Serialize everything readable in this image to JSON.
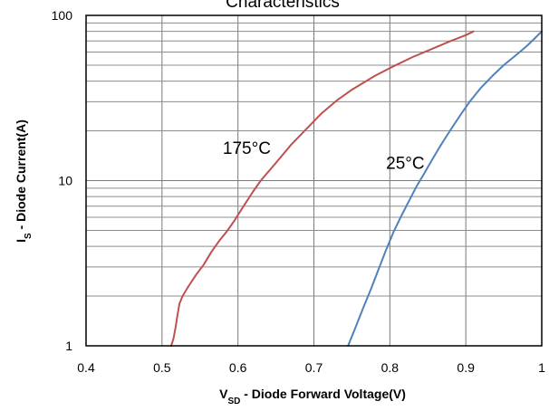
{
  "chart_data": {
    "type": "line",
    "title": "Characteristics",
    "xlabel": {
      "main": "V",
      "sub": "SD",
      "rest": " - Diode Forward Voltage(V)"
    },
    "ylabel": {
      "main": "I",
      "sub": "S",
      "rest": " - Diode Current(A)"
    },
    "xlim": [
      0.4,
      1.0
    ],
    "ylim": [
      1,
      100
    ],
    "yscale": "log",
    "grid": true,
    "xticks": [
      0.4,
      0.5,
      0.6,
      0.7,
      0.8,
      0.9,
      1.0
    ],
    "xtick_labels": [
      "0.4",
      "0.5",
      "0.6",
      "0.7",
      "0.8",
      "0.9",
      "1"
    ],
    "yticks": [
      1,
      10,
      100
    ],
    "ytick_labels": [
      "1",
      "10",
      "100"
    ],
    "series": [
      {
        "name": "175°C",
        "color": "#c0504d",
        "x": [
          0.512,
          0.515,
          0.518,
          0.52,
          0.523,
          0.527,
          0.535,
          0.545,
          0.555,
          0.565,
          0.575,
          0.585,
          0.595,
          0.6,
          0.61,
          0.62,
          0.63,
          0.65,
          0.67,
          0.69,
          0.71,
          0.73,
          0.75,
          0.78,
          0.8,
          0.83,
          0.86,
          0.88,
          0.9,
          0.91
        ],
        "y": [
          1.0,
          1.1,
          1.3,
          1.5,
          1.8,
          2.0,
          2.3,
          2.7,
          3.1,
          3.7,
          4.3,
          4.9,
          5.7,
          6.2,
          7.3,
          8.6,
          10.0,
          12.8,
          16.5,
          20.5,
          25.5,
          30.5,
          35.5,
          43.0,
          48.0,
          56.0,
          64.0,
          70.0,
          76.0,
          80.0
        ]
      },
      {
        "name": "25°C",
        "color": "#4f81bd",
        "x": [
          0.745,
          0.755,
          0.765,
          0.775,
          0.785,
          0.795,
          0.805,
          0.815,
          0.825,
          0.835,
          0.845,
          0.855,
          0.865,
          0.875,
          0.885,
          0.895,
          0.905,
          0.92,
          0.935,
          0.95,
          0.965,
          0.98,
          0.99,
          1.0
        ],
        "y": [
          1.0,
          1.3,
          1.7,
          2.2,
          2.9,
          3.8,
          4.9,
          6.1,
          7.5,
          9.2,
          11.0,
          13.2,
          15.8,
          18.7,
          22.0,
          25.8,
          30.0,
          36.5,
          43.0,
          50.0,
          57.0,
          65.0,
          72.0,
          80.0
        ]
      }
    ],
    "annotations": [
      {
        "text": "175°C",
        "x": 0.58,
        "y": 14.5
      },
      {
        "text": "25°C",
        "x": 0.795,
        "y": 11.8
      }
    ]
  }
}
